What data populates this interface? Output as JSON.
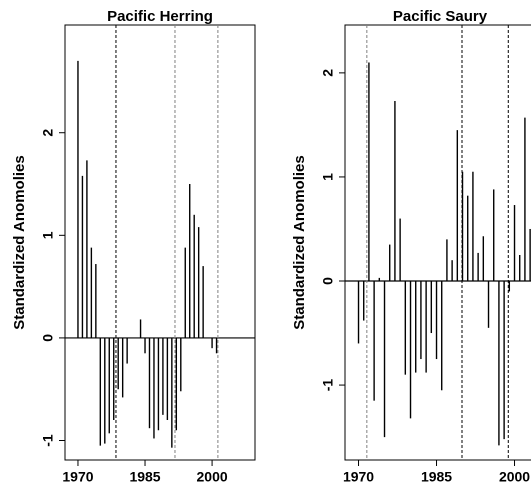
{
  "chart_data": [
    {
      "type": "bar",
      "title": "Pacific Herring",
      "y_label": "Standardized Anomolies",
      "x": [
        1970,
        1971,
        1972,
        1973,
        1974,
        1975,
        1976,
        1977,
        1978,
        1979,
        1980,
        1981,
        1984,
        1985,
        1986,
        1987,
        1988,
        1989,
        1990,
        1991,
        1992,
        1993,
        1994,
        1995,
        1996,
        1997,
        1998,
        2000,
        2001
      ],
      "values": [
        2.7,
        1.58,
        1.73,
        0.88,
        0.72,
        -1.05,
        -1.03,
        -0.93,
        -0.8,
        -0.5,
        -0.58,
        -0.25,
        0.18,
        -0.15,
        -0.88,
        -0.98,
        -0.9,
        -0.75,
        -0.8,
        -1.07,
        -0.9,
        -0.52,
        0.88,
        1.5,
        1.2,
        1.08,
        0.7,
        -0.1,
        -0.15
      ],
      "color": "#000000",
      "vlines": [
        {
          "x": 1978.5,
          "color": "#000000"
        },
        {
          "x": 1991.7,
          "color": "#808080"
        },
        {
          "x": 2001.3,
          "color": "#808080"
        }
      ],
      "xlim": [
        1967.1,
        2009.6
      ],
      "ylim": [
        -1.19,
        3.05
      ],
      "xticks": [
        1970,
        1985,
        2000
      ],
      "yticks": [
        -1,
        0,
        1,
        2
      ]
    },
    {
      "type": "bar",
      "title": "Pacific Saury",
      "y_label": "Standardized Anomolies",
      "x": [
        1970,
        1971,
        1972,
        1973,
        1974,
        1975,
        1976,
        1977,
        1978,
        1979,
        1980,
        1981,
        1982,
        1983,
        1984,
        1985,
        1986,
        1987,
        1988,
        1989,
        1990,
        1991,
        1992,
        1993,
        1994,
        1995,
        1996,
        1997,
        1998,
        1999,
        2000,
        2001,
        2002,
        2003
      ],
      "values": [
        -0.6,
        -0.38,
        2.1,
        -1.15,
        0.03,
        -1.5,
        0.35,
        1.73,
        0.6,
        -0.9,
        -1.32,
        -0.88,
        -0.75,
        -0.88,
        -0.5,
        -0.75,
        -1.05,
        0.4,
        0.2,
        1.45,
        1.05,
        0.82,
        1.05,
        0.27,
        0.43,
        -0.45,
        0.88,
        -1.58,
        -1.52,
        -0.1,
        0.73,
        0.25,
        1.57,
        0.5
      ],
      "color": "#000000",
      "vlines": [
        {
          "x": 1971.6,
          "color": "#808080"
        },
        {
          "x": 1989.9,
          "color": "#000000"
        },
        {
          "x": 1998.8,
          "color": "#000000"
        }
      ],
      "xlim": [
        1967.4,
        2004.9
      ],
      "ylim": [
        -1.72,
        2.46
      ],
      "xticks": [
        1970,
        1985,
        2000
      ],
      "yticks": [
        -1,
        0,
        1,
        2
      ]
    }
  ]
}
